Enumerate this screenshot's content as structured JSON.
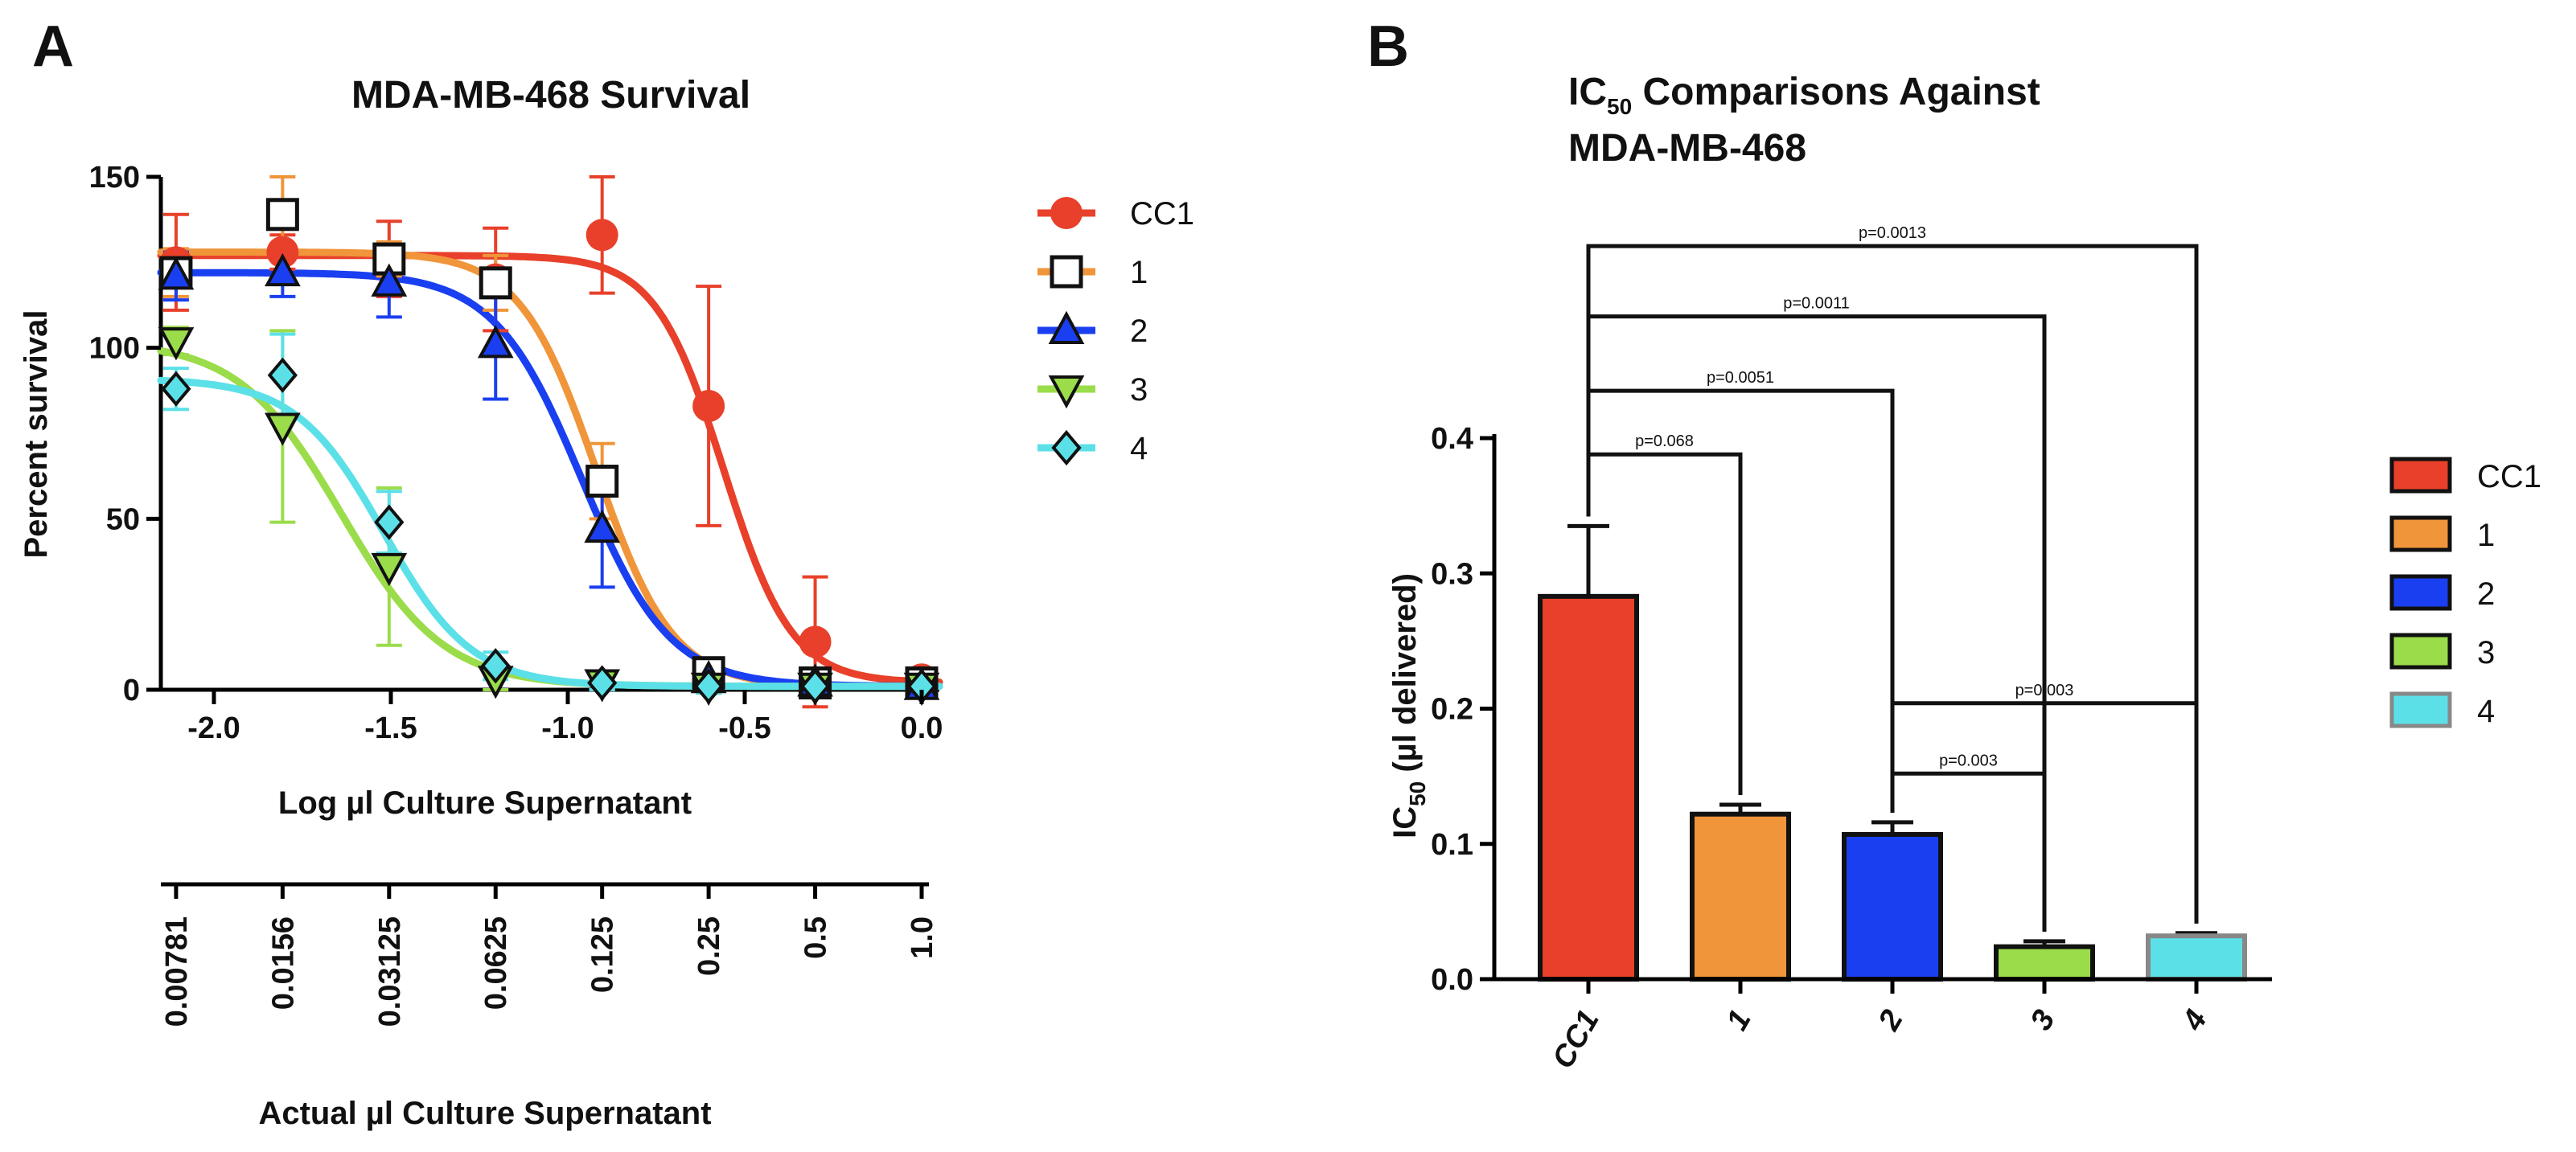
{
  "figure": {
    "panel_a_letter": "A",
    "panel_b_letter": "B"
  },
  "chart_data": [
    {
      "type": "line",
      "title": "MDA-MB-468 Survival",
      "xlabel": "Log µl Culture Supernatant",
      "ylabel": "Percent survival",
      "xlim": [
        -2.15,
        0.05
      ],
      "ylim": [
        0,
        150
      ],
      "x_ticks": [
        "-2.0",
        "-1.5",
        "-1.0",
        "-0.5",
        "0.0"
      ],
      "y_ticks": [
        "0",
        "50",
        "100",
        "150"
      ],
      "x": [
        -2.107,
        -1.806,
        -1.505,
        -1.204,
        -0.903,
        -0.602,
        -0.301,
        0.0
      ],
      "secondary_axis": {
        "label": "Actual µl Culture Supernatant",
        "ticks": [
          "0.00781",
          "0.0156",
          "0.03125",
          "0.0625",
          "0.125",
          "0.25",
          "0.5",
          "1.0"
        ]
      },
      "series": [
        {
          "name": "CC1",
          "color": "#e8402a",
          "marker": "circle",
          "values": [
            125,
            128,
            126,
            120,
            133,
            83,
            14,
            3
          ],
          "errors": [
            14,
            5,
            11,
            15,
            17,
            35,
            19,
            3
          ],
          "fit": {
            "top": 127,
            "bottom": 2,
            "logIC50": -0.56,
            "hill": 4.5
          }
        },
        {
          "name": "1",
          "color": "#f0953a",
          "marker": "square-open",
          "values": [
            122,
            139,
            126,
            119,
            61,
            5,
            2,
            2
          ],
          "errors": [
            7,
            11,
            5,
            8,
            11,
            3,
            3,
            2
          ],
          "fit": {
            "top": 128,
            "bottom": 1,
            "logIC50": -0.92,
            "hill": 4.0
          }
        },
        {
          "name": "2",
          "color": "#1a3ff0",
          "marker": "triangle-up",
          "values": [
            121,
            122,
            119,
            101,
            47,
            3,
            2,
            1
          ],
          "errors": [
            7,
            7,
            10,
            16,
            17,
            3,
            2,
            2
          ],
          "fit": {
            "top": 122,
            "bottom": 1,
            "logIC50": -0.96,
            "hill": 3.5
          }
        },
        {
          "name": "3",
          "color": "#9bdc4a",
          "marker": "triangle-down",
          "values": [
            102,
            77,
            36,
            3,
            2,
            1,
            1,
            1
          ],
          "errors": [
            4,
            28,
            23,
            3,
            2,
            2,
            1,
            1
          ],
          "fit": {
            "top": 102,
            "bottom": 1,
            "logIC50": -1.64,
            "hill": 3.0
          }
        },
        {
          "name": "4",
          "color": "#5ce0e8",
          "marker": "diamond",
          "values": [
            88,
            92,
            49,
            7,
            2,
            1,
            1,
            1
          ],
          "errors": [
            6,
            12,
            9,
            4,
            2,
            2,
            1,
            1
          ],
          "fit": {
            "top": 91,
            "bottom": 1,
            "logIC50": -1.52,
            "hill": 3.5
          }
        }
      ]
    },
    {
      "type": "bar",
      "title_prefix": "IC",
      "title_sub": "50",
      "title_rest": " Comparisons Against",
      "title_line2": "MDA-MB-468",
      "ylabel_prefix": "IC",
      "ylabel_sub": "50",
      "ylabel_rest": " (µl delivered)",
      "ylim": [
        0,
        0.4
      ],
      "y_ticks": [
        "0.0",
        "0.1",
        "0.2",
        "0.3",
        "0.4"
      ],
      "categories": [
        "CC1",
        "1",
        "2",
        "3",
        "4"
      ],
      "values": [
        0.283,
        0.122,
        0.107,
        0.024,
        0.032
      ],
      "errors": [
        0.052,
        0.007,
        0.009,
        0.004,
        0.002
      ],
      "colors": [
        "#e8402a",
        "#f0953a",
        "#1a3ff0",
        "#9bdc4a",
        "#5ce0e8"
      ],
      "legend": [
        "CC1",
        "1",
        "2",
        "3",
        "4"
      ],
      "comparisons": [
        {
          "from": 0,
          "to": 4,
          "level": 0.542,
          "label": "p=0.0013"
        },
        {
          "from": 0,
          "to": 3,
          "level": 0.49,
          "label": "p=0.0011"
        },
        {
          "from": 0,
          "to": 2,
          "level": 0.435,
          "label": "p=0.0051"
        },
        {
          "from": 0,
          "to": 1,
          "level": 0.388,
          "label": "p=0.068"
        },
        {
          "from": 2,
          "to": 4,
          "level": 0.204,
          "label": "p=0.003"
        },
        {
          "from": 2,
          "to": 3,
          "level": 0.152,
          "label": "p=0.003"
        }
      ]
    }
  ]
}
